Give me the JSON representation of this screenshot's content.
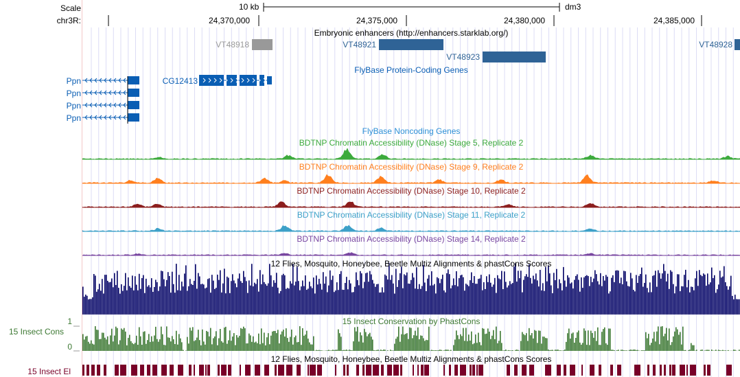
{
  "ruler": {
    "scale_label": "Scale",
    "chrom_label": "chr3R:",
    "scale_text": "10 kb",
    "assembly": "dm3",
    "positions": [
      "24,370,000",
      "24,375,000",
      "24,380,000",
      "24,385,000"
    ]
  },
  "tracks": {
    "enhancers": {
      "title": "Embryonic enhancers (http://enhancers.starklab.org/)",
      "items": [
        "VT48918",
        "VT48921",
        "VT48923",
        "VT48928"
      ]
    },
    "flybase_genes": {
      "title": "FlyBase Protein-Coding Genes",
      "items": [
        "CG12413",
        "Ppn",
        "Ppn",
        "Ppn",
        "Ppn"
      ]
    },
    "noncoding": {
      "title": "FlyBase Noncoding Genes"
    },
    "dnase": [
      {
        "title": "BDTNP Chromatin Accessibility (DNase) Stage 5, Replicate 2",
        "color": "#3caa3c"
      },
      {
        "title": "BDTNP Chromatin Accessibility (DNase) Stage 9, Replicate 2",
        "color": "#ff7f1e"
      },
      {
        "title": "BDTNP Chromatin Accessibility (DNase) Stage 10, Replicate 2",
        "color": "#8c1e1e"
      },
      {
        "title": "BDTNP Chromatin Accessibility (DNase) Stage 11, Replicate 2",
        "color": "#3ca0c8"
      },
      {
        "title": "BDTNP Chromatin Accessibility (DNase) Stage 14, Replicate 2",
        "color": "#7846a0"
      }
    ],
    "multiz": {
      "title": "12 Flies, Mosquito, Honeybee, Beetle Multiz Alignments & phastCons Scores",
      "color": "#000064"
    },
    "phastcons": {
      "title": "15 Insect Conservation by PhastCons",
      "side_label": "15 Insect Cons",
      "ymax": "1",
      "ymin": "0",
      "color": "#3c7832"
    },
    "elements": {
      "title": "12 Flies, Mosquito, Honeybee, Beetle Multiz Alignments & phastCons Scores",
      "side_label": "15 Insect El",
      "color": "#780028"
    }
  },
  "colors": {
    "gene": "#0a5eb4",
    "enhancer": "#2f6396",
    "enhancer_gray": "#999999",
    "enhancer_label": "#2f6396",
    "ncgene": "#2c8fd6",
    "gridline": "#dcdcf5",
    "highlight_edge": "#f4c8c8"
  }
}
